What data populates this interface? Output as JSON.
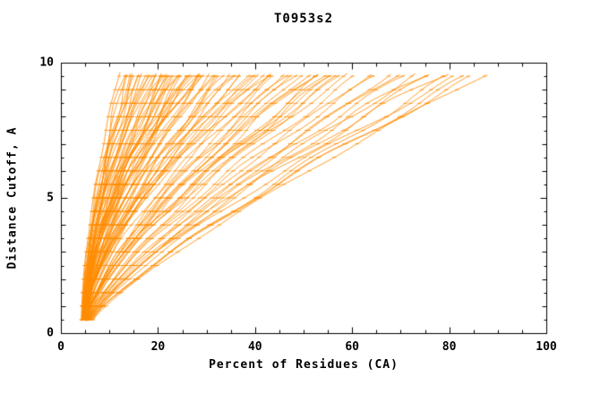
{
  "title": "T0953s2",
  "chart_data": {
    "type": "line",
    "title": "T0953s2",
    "xlabel": "Percent of Residues (CA)",
    "ylabel": "Distance Cutoff, A",
    "xlim": [
      0,
      100
    ],
    "ylim": [
      0,
      10
    ],
    "x_major_ticks": [
      0,
      20,
      40,
      60,
      80,
      100
    ],
    "x_minor_step": 5,
    "y_major_ticks": [
      0,
      5,
      10
    ],
    "y_minor_step": 0.5,
    "grid": false,
    "legend": "none",
    "line_color": "#FF8C00",
    "frame_color": "#000000",
    "y_start": 0.45,
    "y_end": 9.65,
    "marker_step": 0.5,
    "series_model": "x(y) = x0 + (xt - x0) * ((y - y_start)/(y_end - y_start))^p, one curve per model",
    "curves": [
      [
        4.2,
        12,
        1.6
      ],
      [
        4.5,
        13,
        1.7
      ],
      [
        5.0,
        13.5,
        1.8
      ],
      [
        4.8,
        14,
        1.6
      ],
      [
        5.2,
        14.5,
        1.9
      ],
      [
        4.4,
        15,
        1.7
      ],
      [
        5.5,
        15.5,
        1.8
      ],
      [
        4.9,
        16,
        2.0
      ],
      [
        5.1,
        16.5,
        1.7
      ],
      [
        4.6,
        17,
        1.9
      ],
      [
        5.3,
        17.5,
        1.8
      ],
      [
        4.7,
        18,
        1.7
      ],
      [
        5.6,
        18.5,
        2.0
      ],
      [
        4.3,
        19,
        1.8
      ],
      [
        5.0,
        19.5,
        1.9
      ],
      [
        4.5,
        20,
        1.6
      ],
      [
        5.2,
        20.5,
        1.8
      ],
      [
        4.8,
        21,
        1.5
      ],
      [
        5.4,
        21.5,
        1.7
      ],
      [
        4.6,
        22,
        1.9
      ],
      [
        5.0,
        22.5,
        1.6
      ],
      [
        5.6,
        23,
        1.8
      ],
      [
        4.4,
        23.5,
        1.5
      ],
      [
        5.1,
        24,
        1.7
      ],
      [
        4.9,
        24.5,
        1.9
      ],
      [
        5.3,
        25,
        1.6
      ],
      [
        4.7,
        25.5,
        1.8
      ],
      [
        5.5,
        26,
        1.5
      ],
      [
        5.0,
        26.5,
        1.7
      ],
      [
        4.5,
        27,
        1.9
      ],
      [
        5.2,
        27.5,
        1.6
      ],
      [
        4.8,
        28,
        1.8
      ],
      [
        5.4,
        28.5,
        1.7
      ],
      [
        4.6,
        29,
        1.5
      ],
      [
        5.1,
        29.5,
        1.9
      ],
      [
        5.7,
        30,
        1.7
      ],
      [
        4.9,
        20.8,
        1.6
      ],
      [
        5.3,
        23.8,
        1.8
      ],
      [
        4.7,
        26.8,
        1.6
      ],
      [
        5.0,
        28.8,
        1.8
      ],
      [
        5.0,
        31,
        1.5
      ],
      [
        5.5,
        32,
        1.7
      ],
      [
        4.8,
        33,
        1.4
      ],
      [
        5.2,
        34,
        1.6
      ],
      [
        5.8,
        35,
        1.5
      ],
      [
        4.6,
        36,
        1.7
      ],
      [
        5.3,
        37,
        1.4
      ],
      [
        5.0,
        38,
        1.6
      ],
      [
        5.6,
        39,
        1.7
      ],
      [
        4.9,
        40,
        1.5
      ],
      [
        5.4,
        41,
        1.7
      ],
      [
        5.1,
        42,
        1.6
      ],
      [
        5.9,
        43,
        1.4
      ],
      [
        4.7,
        44,
        1.6
      ],
      [
        5.2,
        45,
        1.5
      ],
      [
        5.5,
        31.5,
        1.7
      ],
      [
        5.0,
        33.5,
        1.5
      ],
      [
        5.7,
        36.5,
        1.6
      ],
      [
        4.8,
        40.5,
        1.5
      ],
      [
        5.3,
        43.5,
        1.7
      ],
      [
        5.5,
        46,
        1.4
      ],
      [
        5.0,
        47.5,
        1.3
      ],
      [
        5.8,
        49,
        1.5
      ],
      [
        5.2,
        50,
        1.35
      ],
      [
        6.0,
        51.5,
        1.45
      ],
      [
        5.4,
        53,
        1.5
      ],
      [
        5.1,
        54,
        1.3
      ],
      [
        5.9,
        55.5,
        1.4
      ],
      [
        5.3,
        57,
        1.45
      ],
      [
        6.1,
        58,
        1.3
      ],
      [
        5.6,
        59,
        1.5
      ],
      [
        5.0,
        60,
        1.4
      ],
      [
        5.7,
        47,
        1.45
      ],
      [
        5.2,
        52,
        1.35
      ],
      [
        6.2,
        56,
        1.3
      ],
      [
        5.5,
        62,
        1.3
      ],
      [
        6.0,
        64,
        1.25
      ],
      [
        5.8,
        66,
        1.35
      ],
      [
        6.3,
        68,
        1.2
      ],
      [
        5.6,
        70,
        1.3
      ],
      [
        6.1,
        72,
        1.35
      ],
      [
        5.9,
        74,
        1.25
      ],
      [
        6.4,
        75,
        1.3
      ],
      [
        6.0,
        77,
        1.25
      ],
      [
        6.5,
        79,
        1.3
      ],
      [
        6.2,
        81,
        1.15
      ],
      [
        6.7,
        83,
        1.3
      ],
      [
        6.3,
        85,
        1.2
      ],
      [
        6.8,
        86.5,
        1.25
      ],
      [
        6.5,
        88,
        1.2
      ]
    ]
  }
}
